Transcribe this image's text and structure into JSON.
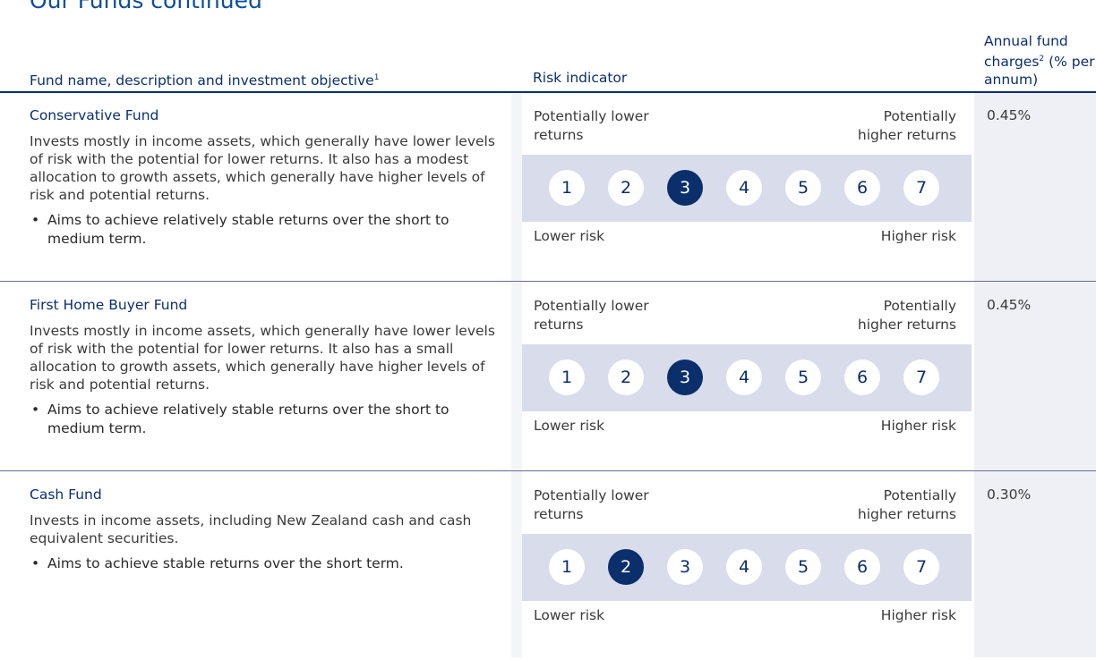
{
  "header": {
    "title": "Our Funds continued",
    "columns": [
      {
        "text": "Fund name, description and investment objective",
        "sup": "1"
      },
      {
        "text": "Risk indicator"
      },
      {
        "text": "Annual fund charges",
        "sup": "2",
        "after": " (% per annum)"
      }
    ]
  },
  "risk_labels": {
    "top_left": "Potentially lower returns",
    "top_right": "Potentially higher returns",
    "bottom_left": "Lower risk",
    "bottom_right": "Higher risk"
  },
  "risk_scale": [
    1,
    2,
    3,
    4,
    5,
    6,
    7
  ],
  "rows": [
    {
      "name": "Conservative Fund",
      "description": "Invests mostly in income assets, which generally have lower levels of risk with the potential for lower returns. It also has a modest allocation to growth assets, which generally have higher levels of risk and potential returns.",
      "objective": "Aims to achieve relatively stable returns over the short to medium term.",
      "risk": 3,
      "charge": "0.45%"
    },
    {
      "name": "First Home Buyer Fund",
      "description": "Invests mostly in income assets, which generally have lower levels of risk with the potential for lower returns. It also has a small allocation to growth assets, which generally have higher levels of risk and potential returns.",
      "objective": "Aims to achieve relatively stable returns over the short to medium term.",
      "risk": 3,
      "charge": "0.45%"
    },
    {
      "name": "Cash Fund",
      "description": "Invests in income assets, including New Zealand cash and cash equivalent securities.",
      "objective": "Aims to achieve stable returns over the short term.",
      "risk": 2,
      "charge": "0.30%"
    }
  ]
}
